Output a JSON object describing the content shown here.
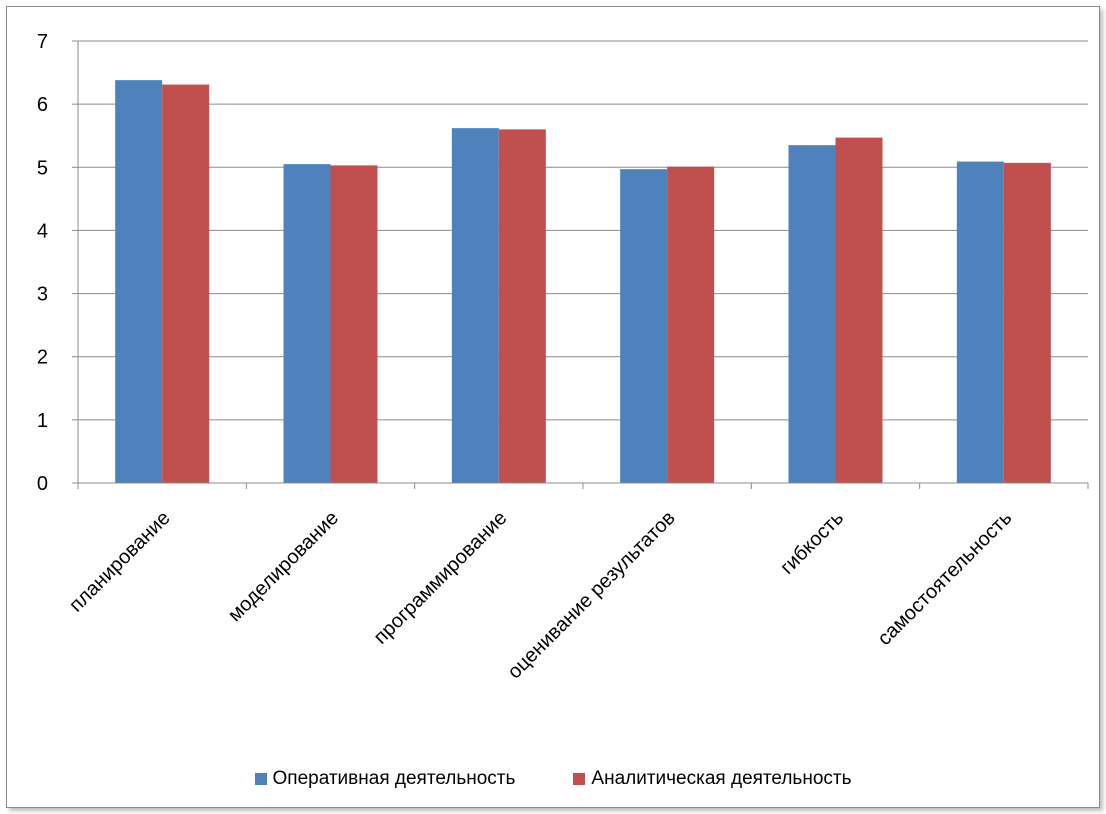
{
  "chart_data": {
    "type": "bar",
    "categories": [
      "планирование",
      "моделирование",
      "программирование",
      "оценивание результатов",
      "гибкость",
      "самостоятельность"
    ],
    "series": [
      {
        "name": "Оперативная деятельность",
        "color": "#4F81BD",
        "values": [
          6.38,
          5.05,
          5.62,
          4.97,
          5.35,
          5.09
        ]
      },
      {
        "name": "Аналитическая деятельность",
        "color": "#C0504D",
        "values": [
          6.31,
          5.03,
          5.6,
          5.01,
          5.47,
          5.07
        ]
      }
    ],
    "yticks": [
      "0",
      "1",
      "2",
      "3",
      "4",
      "5",
      "6",
      "7"
    ],
    "ylim": [
      0,
      7
    ],
    "grid": true,
    "legend_position": "bottom"
  }
}
